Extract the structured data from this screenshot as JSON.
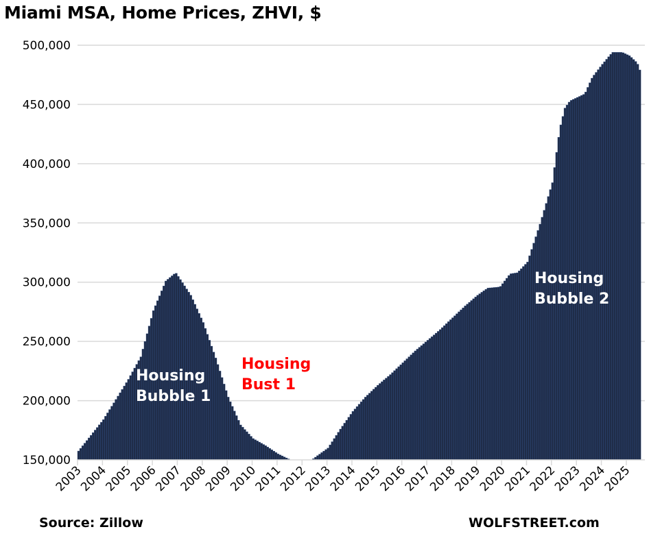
{
  "chart_data": {
    "type": "bar",
    "title": "Miami MSA, Home Prices, ZHVI, $",
    "xlabel": "",
    "ylabel": "",
    "ylim": [
      150000,
      500000
    ],
    "yticks": [
      "150,000",
      "200,000",
      "250,000",
      "300,000",
      "350,000",
      "400,000",
      "450,000",
      "500,000"
    ],
    "ytick_values": [
      150000,
      200000,
      250000,
      300000,
      350000,
      400000,
      450000,
      500000
    ],
    "xticks": [
      "2003",
      "2004",
      "2005",
      "2006",
      "2007",
      "2008",
      "2009",
      "2010",
      "2011",
      "2012",
      "2013",
      "2014",
      "2015",
      "2016",
      "2017",
      "2018",
      "2019",
      "2020",
      "2021",
      "2022",
      "2023",
      "2024",
      "2025"
    ],
    "grid": true,
    "frequency": "monthly",
    "start": "2003-01",
    "months": 271,
    "anchors": [
      [
        2003.0,
        157500
      ],
      [
        2004.0,
        184000
      ],
      [
        2005.0,
        218000
      ],
      [
        2005.5,
        237000
      ],
      [
        2006.0,
        276000
      ],
      [
        2006.5,
        301000
      ],
      [
        2006.9,
        308000
      ],
      [
        2007.5,
        289000
      ],
      [
        2008.0,
        266000
      ],
      [
        2008.5,
        236000
      ],
      [
        2009.0,
        203000
      ],
      [
        2009.5,
        179500
      ],
      [
        2010.0,
        168000
      ],
      [
        2010.5,
        162000
      ],
      [
        2011.0,
        155000
      ],
      [
        2011.5,
        150000
      ],
      [
        2012.0,
        149000
      ],
      [
        2012.35,
        150000
      ],
      [
        2013.0,
        160000
      ],
      [
        2013.5,
        176000
      ],
      [
        2014.0,
        191000
      ],
      [
        2014.5,
        203000
      ],
      [
        2015.0,
        213000
      ],
      [
        2015.5,
        222000
      ],
      [
        2016.0,
        232000
      ],
      [
        2016.5,
        242000
      ],
      [
        2017.0,
        251000
      ],
      [
        2017.5,
        260000
      ],
      [
        2018.0,
        270000
      ],
      [
        2018.5,
        280000
      ],
      [
        2019.0,
        289000
      ],
      [
        2019.4,
        295000
      ],
      [
        2019.9,
        296000
      ],
      [
        2020.3,
        307000
      ],
      [
        2020.6,
        308000
      ],
      [
        2021.0,
        317000
      ],
      [
        2021.5,
        349000
      ],
      [
        2022.0,
        384000
      ],
      [
        2022.3,
        430000
      ],
      [
        2022.5,
        447000
      ],
      [
        2022.7,
        453000
      ],
      [
        2023.0,
        456000
      ],
      [
        2023.3,
        459000
      ],
      [
        2023.6,
        473000
      ],
      [
        2024.0,
        484000
      ],
      [
        2024.4,
        494000
      ],
      [
        2024.8,
        494000
      ],
      [
        2025.1,
        491000
      ],
      [
        2025.4,
        485000
      ],
      [
        2025.58,
        474500
      ]
    ],
    "series_color": "#1f2c48",
    "annotations": [
      {
        "text_lines": [
          "Housing",
          "Bubble 1"
        ],
        "color": "#ffffff"
      },
      {
        "text_lines": [
          "Housing",
          "Bust 1"
        ],
        "color": "#ff0000"
      },
      {
        "text_lines": [
          "Housing",
          "Bubble 2"
        ],
        "color": "#ffffff"
      }
    ]
  },
  "footer": {
    "source": "Source: Zillow",
    "brand": "WOLFSTREET.com"
  }
}
